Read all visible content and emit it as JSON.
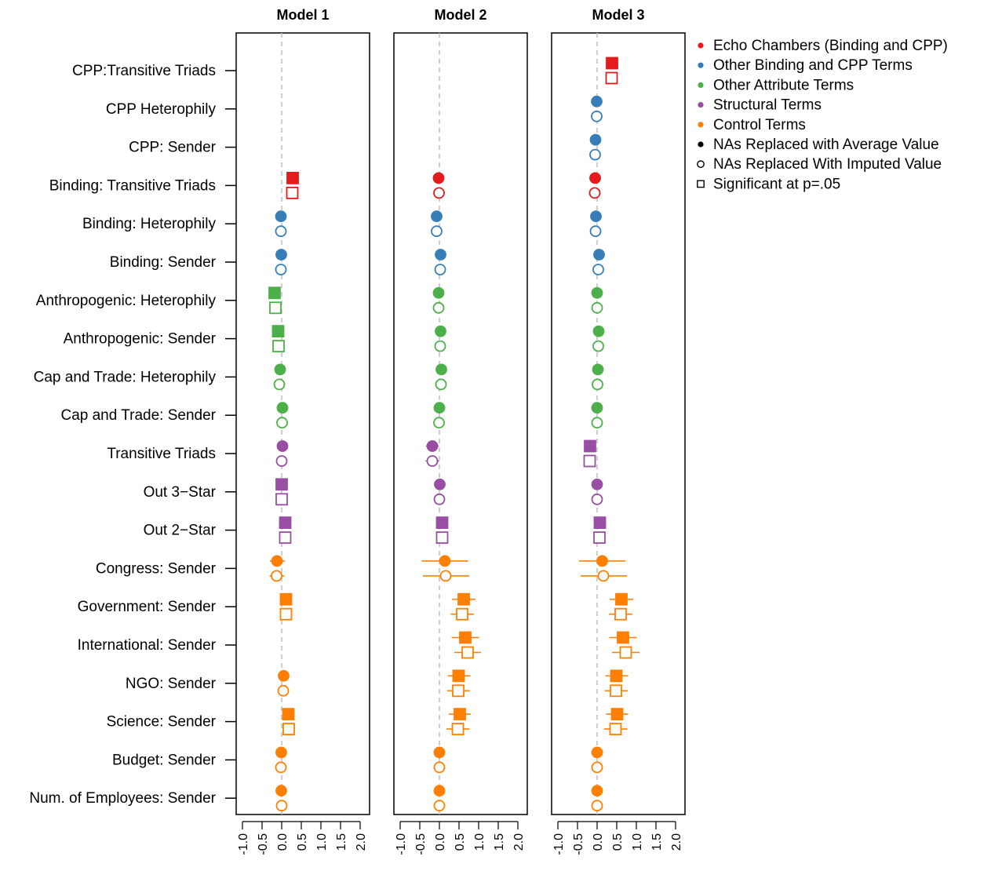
{
  "chart_data": {
    "type": "scatter",
    "subtype": "coefficient-plot",
    "panels": [
      "Model 1",
      "Model 2",
      "Model 3"
    ],
    "xlim": [
      -1.0,
      2.0
    ],
    "xticks": [
      "-1.0",
      "-0.5",
      "0.0",
      "0.5",
      "1.0",
      "1.5",
      "2.0"
    ],
    "reference_line": 0,
    "terms": [
      "CPP:Transitive Triads",
      "CPP Heterophily",
      "CPP: Sender",
      "Binding: Transitive Triads",
      "Binding: Heterophily",
      "Binding: Sender",
      "Anthropogenic: Heterophily",
      "Anthropogenic: Sender",
      "Cap and Trade: Heterophily",
      "Cap and Trade: Sender",
      "Transitive Triads",
      "Out 3−Star",
      "Out 2−Star",
      "Congress: Sender",
      "Government: Sender",
      "International: Sender",
      "NGO: Sender",
      "Science: Sender",
      "Budget: Sender",
      "Num. of Employees: Sender"
    ],
    "term_groups": [
      "echo",
      "binding",
      "binding",
      "echo",
      "binding",
      "binding",
      "attribute",
      "attribute",
      "attribute",
      "attribute",
      "structural",
      "structural",
      "structural",
      "control",
      "control",
      "control",
      "control",
      "control",
      "control",
      "control"
    ],
    "group_colors": {
      "echo": "#e41a1c",
      "binding": "#377eb8",
      "attribute": "#4daf4a",
      "structural": "#984ea3",
      "control": "#ff7f00"
    },
    "legend": {
      "position": "top-right",
      "entries": [
        {
          "label": "Echo Chambers (Binding and CPP)",
          "symbol": "dot",
          "color": "#e41a1c"
        },
        {
          "label": "Other Binding and CPP Terms",
          "symbol": "dot",
          "color": "#377eb8"
        },
        {
          "label": "Other Attribute Terms",
          "symbol": "dot",
          "color": "#4daf4a"
        },
        {
          "label": "Structural Terms",
          "symbol": "dot",
          "color": "#984ea3"
        },
        {
          "label": "Control Terms",
          "symbol": "dot",
          "color": "#ff7f00"
        },
        {
          "label": "NAs Replaced with Average Value",
          "symbol": "filled-circle",
          "color": "#000000"
        },
        {
          "label": "NAs Replaced With Imputed Value",
          "symbol": "open-circle",
          "color": "#000000"
        },
        {
          "label": "Significant at p=.05",
          "symbol": "open-square",
          "color": "#000000"
        }
      ]
    },
    "estimates": {
      "Model 1": {
        "average": [
          null,
          null,
          null,
          [
            0.28,
            0.19,
            0.37,
            1
          ],
          [
            -0.02,
            -0.06,
            0.02,
            0
          ],
          [
            -0.01,
            -0.05,
            0.03,
            0
          ],
          [
            -0.18,
            -0.27,
            -0.09,
            1
          ],
          [
            -0.09,
            -0.15,
            -0.03,
            1
          ],
          [
            -0.04,
            -0.09,
            0.01,
            0
          ],
          [
            0.02,
            -0.03,
            0.07,
            0
          ],
          [
            0.02,
            -0.08,
            0.12,
            0
          ],
          [
            0.0,
            -0.04,
            0.04,
            1
          ],
          [
            0.09,
            0.04,
            0.14,
            1
          ],
          [
            -0.12,
            -0.3,
            0.08,
            0
          ],
          [
            0.11,
            0.05,
            0.17,
            1
          ],
          null,
          [
            0.05,
            0.0,
            0.1,
            0
          ],
          [
            0.17,
            0.09,
            0.25,
            1
          ],
          [
            -0.01,
            -0.05,
            0.03,
            0
          ],
          [
            -0.01,
            -0.05,
            0.03,
            0
          ]
        ],
        "imputed": [
          null,
          null,
          null,
          [
            0.27,
            0.18,
            0.36,
            1
          ],
          [
            -0.02,
            -0.06,
            0.02,
            0
          ],
          [
            -0.02,
            -0.06,
            0.02,
            0
          ],
          [
            -0.16,
            -0.25,
            -0.07,
            1
          ],
          [
            -0.08,
            -0.14,
            -0.02,
            1
          ],
          [
            -0.06,
            -0.11,
            -0.01,
            0
          ],
          [
            0.01,
            -0.04,
            0.06,
            0
          ],
          [
            0.0,
            -0.1,
            0.1,
            0
          ],
          [
            0.0,
            -0.04,
            0.04,
            1
          ],
          [
            0.09,
            0.04,
            0.14,
            1
          ],
          [
            -0.13,
            -0.31,
            0.07,
            0
          ],
          [
            0.11,
            0.05,
            0.17,
            1
          ],
          null,
          [
            0.04,
            -0.01,
            0.09,
            0
          ],
          [
            0.18,
            0.1,
            0.26,
            1
          ],
          [
            -0.02,
            -0.06,
            0.02,
            0
          ],
          [
            0.0,
            -0.04,
            0.04,
            0
          ]
        ]
      },
      "Model 2": {
        "average": [
          null,
          null,
          null,
          [
            -0.02,
            -0.15,
            0.11,
            0
          ],
          [
            -0.07,
            -0.11,
            -0.03,
            0
          ],
          [
            0.03,
            -0.01,
            0.07,
            0
          ],
          [
            -0.02,
            -0.15,
            0.11,
            0
          ],
          [
            0.03,
            -0.09,
            0.15,
            0
          ],
          [
            0.05,
            0.0,
            0.1,
            0
          ],
          [
            0.0,
            -0.05,
            0.05,
            0
          ],
          [
            -0.18,
            -0.34,
            -0.02,
            0
          ],
          [
            0.01,
            -0.03,
            0.05,
            0
          ],
          [
            0.07,
            0.02,
            0.12,
            1
          ],
          [
            0.14,
            -0.45,
            0.73,
            0
          ],
          [
            0.62,
            0.32,
            0.92,
            1
          ],
          [
            0.66,
            0.31,
            1.01,
            1
          ],
          [
            0.49,
            0.21,
            0.79,
            1
          ],
          [
            0.52,
            0.24,
            0.8,
            1
          ],
          [
            0.0,
            -0.04,
            0.04,
            0
          ],
          [
            0.0,
            -0.04,
            0.04,
            0
          ]
        ],
        "imputed": [
          null,
          null,
          null,
          [
            -0.01,
            -0.14,
            0.12,
            0
          ],
          [
            -0.07,
            -0.11,
            -0.03,
            0
          ],
          [
            0.02,
            -0.02,
            0.06,
            0
          ],
          [
            -0.02,
            -0.15,
            0.11,
            0
          ],
          [
            0.02,
            -0.1,
            0.14,
            0
          ],
          [
            0.04,
            -0.01,
            0.09,
            0
          ],
          [
            -0.01,
            -0.06,
            0.04,
            0
          ],
          [
            -0.18,
            -0.35,
            -0.01,
            0
          ],
          [
            0.0,
            -0.04,
            0.04,
            0
          ],
          [
            0.07,
            0.02,
            0.12,
            1
          ],
          [
            0.16,
            -0.42,
            0.76,
            0
          ],
          [
            0.58,
            0.29,
            0.88,
            1
          ],
          [
            0.72,
            0.38,
            1.06,
            1
          ],
          [
            0.48,
            0.2,
            0.78,
            1
          ],
          [
            0.47,
            0.18,
            0.77,
            1
          ],
          [
            0.0,
            -0.04,
            0.04,
            0
          ],
          [
            0.0,
            -0.04,
            0.04,
            0
          ]
        ]
      },
      "Model 3": {
        "average": [
          [
            0.38,
            0.24,
            0.52,
            1
          ],
          [
            -0.01,
            -0.05,
            0.03,
            0
          ],
          [
            -0.04,
            -0.08,
            0.0,
            0
          ],
          [
            -0.05,
            -0.18,
            0.08,
            0
          ],
          [
            -0.03,
            -0.07,
            0.01,
            0
          ],
          [
            0.05,
            0.01,
            0.09,
            0
          ],
          [
            0.0,
            -0.13,
            0.13,
            0
          ],
          [
            0.04,
            -0.08,
            0.16,
            0
          ],
          [
            0.02,
            -0.03,
            0.07,
            0
          ],
          [
            0.0,
            -0.05,
            0.05,
            0
          ],
          [
            -0.18,
            -0.33,
            -0.03,
            1
          ],
          [
            0.0,
            -0.04,
            0.04,
            0
          ],
          [
            0.07,
            0.02,
            0.12,
            1
          ],
          [
            0.13,
            -0.46,
            0.72,
            0
          ],
          [
            0.62,
            0.32,
            0.92,
            1
          ],
          [
            0.66,
            0.31,
            1.01,
            1
          ],
          [
            0.49,
            0.21,
            0.79,
            1
          ],
          [
            0.51,
            0.23,
            0.79,
            1
          ],
          [
            0.0,
            -0.04,
            0.04,
            0
          ],
          [
            0.0,
            -0.04,
            0.04,
            0
          ]
        ],
        "imputed": [
          [
            0.37,
            0.23,
            0.51,
            1
          ],
          [
            -0.01,
            -0.05,
            0.03,
            0
          ],
          [
            -0.05,
            -0.09,
            -0.01,
            0
          ],
          [
            -0.06,
            -0.19,
            0.07,
            0
          ],
          [
            -0.04,
            -0.08,
            0.0,
            0
          ],
          [
            0.03,
            -0.01,
            0.07,
            0
          ],
          [
            0.0,
            -0.13,
            0.13,
            0
          ],
          [
            0.03,
            -0.09,
            0.15,
            0
          ],
          [
            0.01,
            -0.04,
            0.06,
            0
          ],
          [
            0.0,
            -0.05,
            0.05,
            0
          ],
          [
            -0.19,
            -0.35,
            -0.03,
            1
          ],
          [
            0.0,
            -0.04,
            0.04,
            0
          ],
          [
            0.06,
            0.01,
            0.11,
            1
          ],
          [
            0.16,
            -0.42,
            0.76,
            0
          ],
          [
            0.6,
            0.3,
            0.9,
            1
          ],
          [
            0.73,
            0.38,
            1.08,
            1
          ],
          [
            0.48,
            0.2,
            0.78,
            1
          ],
          [
            0.47,
            0.18,
            0.77,
            1
          ],
          [
            0.0,
            -0.04,
            0.04,
            0
          ],
          [
            0.0,
            -0.04,
            0.04,
            0
          ]
        ]
      }
    }
  }
}
